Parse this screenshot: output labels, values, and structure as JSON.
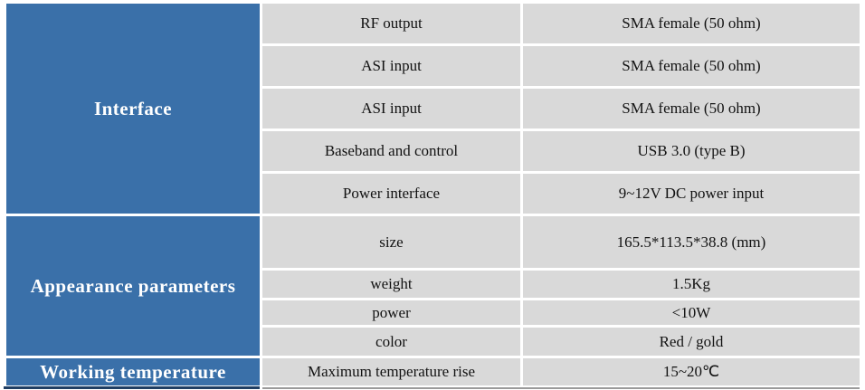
{
  "table": {
    "sections": [
      {
        "header": "Interface",
        "rows": [
          {
            "label": "RF output",
            "value": "SMA female (50 ohm)"
          },
          {
            "label": "ASI input",
            "value": "SMA female (50 ohm)"
          },
          {
            "label": "ASI input",
            "value": "SMA female (50 ohm)"
          },
          {
            "label": "Baseband and control",
            "value": "USB 3.0 (type B)"
          },
          {
            "label": "Power interface",
            "value": "9~12V DC power input"
          }
        ]
      },
      {
        "header": "Appearance parameters",
        "rows": [
          {
            "label": "size",
            "value": "165.5*113.5*38.8 (mm)"
          },
          {
            "label": "weight",
            "value": "1.5Kg"
          },
          {
            "label": "power",
            "value": "<10W"
          },
          {
            "label": "color",
            "value": "Red / gold"
          }
        ]
      },
      {
        "header": "Working temperature",
        "rows": [
          {
            "label": "Maximum temperature rise",
            "value": "15~20℃"
          }
        ]
      }
    ],
    "colors": {
      "header_bg": "#3a70a9",
      "header_text": "#ffffff",
      "cell_bg": "#d9d9d9",
      "cell_text": "#121212",
      "divider": "#ffffff",
      "bottom_edge_blue": "#1f3e63",
      "bottom_edge_gray": "#9b9b9b"
    }
  }
}
